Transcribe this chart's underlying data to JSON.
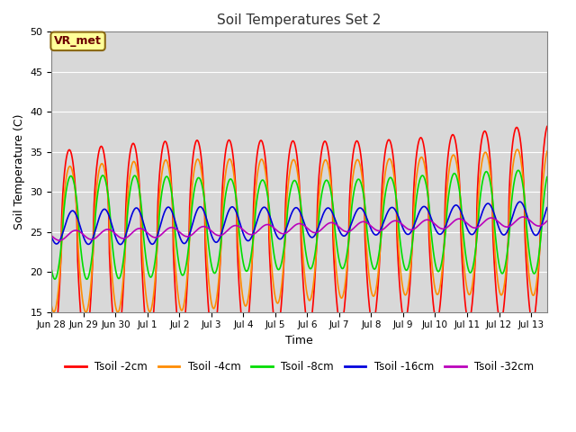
{
  "title": "Soil Temperatures Set 2",
  "xlabel": "Time",
  "ylabel": "Soil Temperature (C)",
  "ylim": [
    15,
    50
  ],
  "background_color": "#d8d8d8",
  "figure_bg": "#ffffff",
  "series": [
    {
      "label": "Tsoil -2cm",
      "color": "#ff0000"
    },
    {
      "label": "Tsoil -4cm",
      "color": "#ff8c00"
    },
    {
      "label": "Tsoil -8cm",
      "color": "#00dd00"
    },
    {
      "label": "Tsoil -16cm",
      "color": "#0000dd"
    },
    {
      "label": "Tsoil -32cm",
      "color": "#bb00bb"
    }
  ],
  "annotation": "VR_met",
  "annotation_bbox": {
    "facecolor": "#ffff99",
    "edgecolor": "#8B6914",
    "boxstyle": "round,pad=0.3"
  },
  "tick_dates": [
    "Jun 28",
    "Jun 29",
    "Jun 30",
    "Jul 1",
    "Jul 2",
    "Jul 3",
    "Jul 4",
    "Jul 5",
    "Jul 6",
    "Jul 7",
    "Jul 8",
    "Jul 9",
    "Jul 10",
    "Jul 11",
    "Jul 12",
    "Jul 13"
  ],
  "yticks": [
    15,
    20,
    25,
    30,
    35,
    40,
    45,
    50
  ],
  "grid_color": "#ffffff",
  "n_days": 16
}
